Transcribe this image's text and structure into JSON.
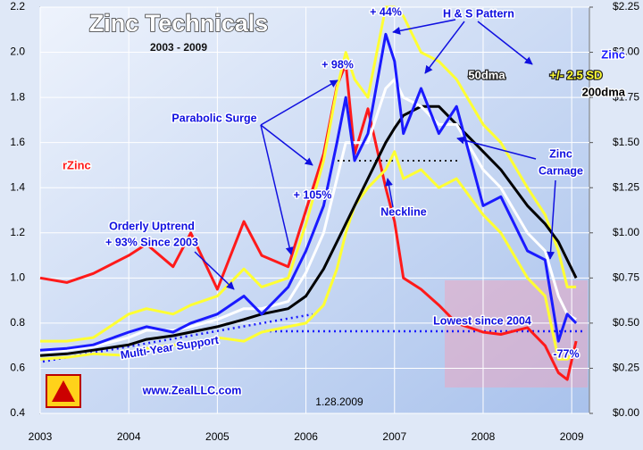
{
  "chart_data": {
    "type": "line",
    "title": "Zinc Technicals",
    "subtitle": "2003 - 2009",
    "x": [
      2003.0,
      2003.3,
      2003.6,
      2004.0,
      2004.2,
      2004.5,
      2004.7,
      2005.0,
      2005.3,
      2005.5,
      2005.8,
      2006.0,
      2006.2,
      2006.35,
      2006.45,
      2006.55,
      2006.7,
      2006.9,
      2007.0,
      2007.1,
      2007.3,
      2007.5,
      2007.7,
      2008.0,
      2008.2,
      2008.5,
      2008.7,
      2008.85,
      2008.95,
      2009.05
    ],
    "series": [
      {
        "name": "rZinc",
        "color": "#ff1a1a",
        "axis": "y",
        "values": [
          1.0,
          0.98,
          1.02,
          1.1,
          1.15,
          1.05,
          1.2,
          0.95,
          1.25,
          1.1,
          1.05,
          1.3,
          1.55,
          1.85,
          1.95,
          1.55,
          1.75,
          1.4,
          1.25,
          1.0,
          0.95,
          0.88,
          0.8,
          0.76,
          0.75,
          0.78,
          0.7,
          0.58,
          0.55,
          0.72
        ]
      },
      {
        "color": "#ffff33",
        "axis": "y2",
        "values": [
          0.3,
          0.31,
          0.33,
          0.32,
          0.36,
          0.38,
          0.38,
          0.42,
          0.4,
          0.45,
          0.48,
          0.5,
          0.6,
          0.8,
          1.0,
          1.15,
          1.25,
          1.35,
          1.45,
          1.3,
          1.35,
          1.25,
          1.3,
          1.1,
          1.0,
          0.75,
          0.65,
          0.3,
          0.3,
          0.35
        ]
      },
      {
        "name": "+/- 2.5 SD",
        "color": "#ffff33",
        "axis": "y2",
        "values": [
          0.4,
          0.4,
          0.42,
          0.55,
          0.58,
          0.55,
          0.6,
          0.65,
          0.8,
          0.7,
          0.75,
          1.05,
          1.4,
          1.8,
          2.0,
          1.85,
          1.75,
          2.25,
          2.25,
          2.2,
          2.0,
          1.95,
          1.85,
          1.6,
          1.5,
          1.25,
          1.1,
          0.9,
          0.7,
          0.7
        ]
      },
      {
        "name": "200dma",
        "color": "#000000",
        "axis": "y2",
        "values": [
          0.32,
          0.33,
          0.35,
          0.38,
          0.41,
          0.43,
          0.45,
          0.48,
          0.52,
          0.55,
          0.58,
          0.65,
          0.8,
          0.95,
          1.05,
          1.15,
          1.3,
          1.5,
          1.58,
          1.65,
          1.7,
          1.7,
          1.6,
          1.45,
          1.35,
          1.15,
          1.05,
          0.95,
          0.85,
          0.75
        ]
      },
      {
        "name": "50dma",
        "color": "#ffffff",
        "axis": "y2",
        "values": [
          0.34,
          0.35,
          0.37,
          0.42,
          0.46,
          0.46,
          0.48,
          0.52,
          0.58,
          0.58,
          0.62,
          0.78,
          1.0,
          1.3,
          1.5,
          1.5,
          1.5,
          1.8,
          1.85,
          1.75,
          1.7,
          1.6,
          1.6,
          1.35,
          1.25,
          1.0,
          0.9,
          0.65,
          0.55,
          0.52
        ]
      },
      {
        "name": "Zinc",
        "color": "#1a1aff",
        "axis": "y2",
        "values": [
          0.35,
          0.36,
          0.38,
          0.45,
          0.48,
          0.45,
          0.5,
          0.55,
          0.65,
          0.55,
          0.7,
          0.9,
          1.15,
          1.5,
          1.75,
          1.4,
          1.55,
          2.1,
          1.95,
          1.55,
          1.8,
          1.55,
          1.7,
          1.15,
          1.2,
          0.9,
          0.85,
          0.4,
          0.55,
          0.5
        ]
      }
    ],
    "xlim": [
      2003,
      2009.2
    ],
    "xticks": [
      2003,
      2004,
      2005,
      2006,
      2007,
      2008,
      2009
    ],
    "ylim": [
      0.4,
      2.2
    ],
    "yticks": [
      0.4,
      0.6,
      0.8,
      {
        "value": 1,
        "label": "1.0"
      },
      1.2,
      1.4,
      1.6,
      1.8,
      {
        "value": 2,
        "label": "2.0"
      },
      2.2
    ],
    "y2lim": [
      0,
      2.25
    ],
    "y2ticks": [
      {
        "value": 0,
        "label": "$0.00"
      },
      {
        "value": 0.25,
        "label": "$0.25"
      },
      {
        "value": 0.5,
        "label": "$0.50"
      },
      {
        "value": 0.75,
        "label": "$0.75"
      },
      {
        "value": 1,
        "label": "$1.00"
      },
      {
        "value": 1.25,
        "label": "$1.25"
      },
      {
        "value": 1.5,
        "label": "$1.50"
      },
      {
        "value": 1.75,
        "label": "$1.75"
      },
      {
        "value": 2,
        "label": "$2.00"
      },
      {
        "value": 2.25,
        "label": "$2.25"
      }
    ],
    "grid": true,
    "annotations": [
      "+ 44%",
      "H & S Pattern",
      "+ 98%",
      "Parabolic Surge",
      "+ 105%",
      "Neckline",
      "Zinc",
      "Carnage",
      "Orderly Uptrend",
      "+ 93% Since 2003",
      "Multi-Year Support",
      "Lowest since 2004",
      "-77%",
      "www.ZealLLC.com",
      "1.28.2009"
    ]
  }
}
